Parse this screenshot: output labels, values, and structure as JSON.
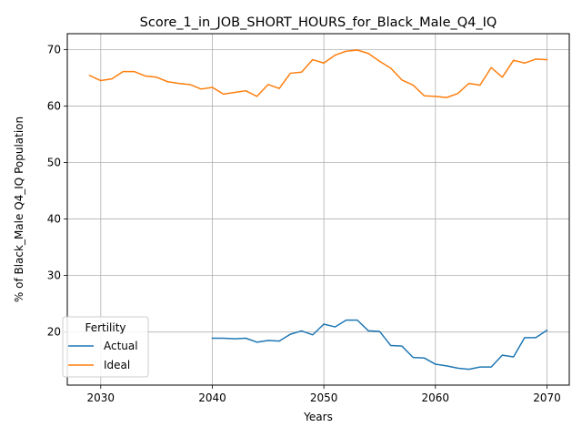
{
  "chart_data": {
    "type": "line",
    "title": "Score_1_in_JOB_SHORT_HOURS_for_Black_Male_Q4_IQ",
    "xlabel": "Years",
    "ylabel": "% of Black_Male Q4_IQ Population",
    "xlim": [
      2027,
      2072
    ],
    "ylim": [
      10.6,
      72.8
    ],
    "xticks": [
      2030,
      2040,
      2050,
      2060,
      2070
    ],
    "yticks": [
      20,
      30,
      40,
      50,
      60,
      70
    ],
    "grid": true,
    "legend": {
      "title": "Fertility",
      "placement": "lower-left"
    },
    "series": [
      {
        "name": "Actual",
        "color": "#1f77b4",
        "x": [
          2040,
          2041,
          2042,
          2043,
          2044,
          2045,
          2046,
          2047,
          2048,
          2049,
          2050,
          2051,
          2052,
          2053,
          2054,
          2055,
          2056,
          2057,
          2058,
          2059,
          2060,
          2061,
          2062,
          2063,
          2064,
          2065,
          2066,
          2067,
          2068,
          2069,
          2070
        ],
        "values": [
          18.9,
          18.9,
          18.8,
          18.9,
          18.2,
          18.5,
          18.4,
          19.6,
          20.2,
          19.5,
          21.4,
          20.9,
          22.1,
          22.1,
          20.2,
          20.1,
          17.6,
          17.5,
          15.5,
          15.4,
          14.3,
          14.0,
          13.6,
          13.4,
          13.8,
          13.8,
          15.9,
          15.6,
          19.0,
          19.0,
          20.3
        ]
      },
      {
        "name": "Ideal",
        "color": "#ff7f0e",
        "x": [
          2029,
          2030,
          2031,
          2032,
          2033,
          2034,
          2035,
          2036,
          2037,
          2038,
          2039,
          2040,
          2041,
          2042,
          2043,
          2044,
          2045,
          2046,
          2047,
          2048,
          2049,
          2050,
          2051,
          2052,
          2053,
          2054,
          2055,
          2056,
          2057,
          2058,
          2059,
          2060,
          2061,
          2062,
          2063,
          2064,
          2065,
          2066,
          2067,
          2068,
          2069,
          2070
        ],
        "values": [
          65.4,
          64.5,
          64.8,
          66.1,
          66.1,
          65.3,
          65.1,
          64.3,
          64.0,
          63.8,
          63.0,
          63.3,
          62.1,
          62.4,
          62.7,
          61.7,
          63.8,
          63.1,
          65.8,
          66.0,
          68.2,
          67.6,
          69.0,
          69.7,
          69.9,
          69.3,
          67.9,
          66.7,
          64.6,
          63.7,
          61.8,
          61.7,
          61.5,
          62.2,
          64.0,
          63.7,
          66.8,
          65.1,
          68.1,
          67.6,
          68.3,
          68.2
        ]
      }
    ]
  }
}
